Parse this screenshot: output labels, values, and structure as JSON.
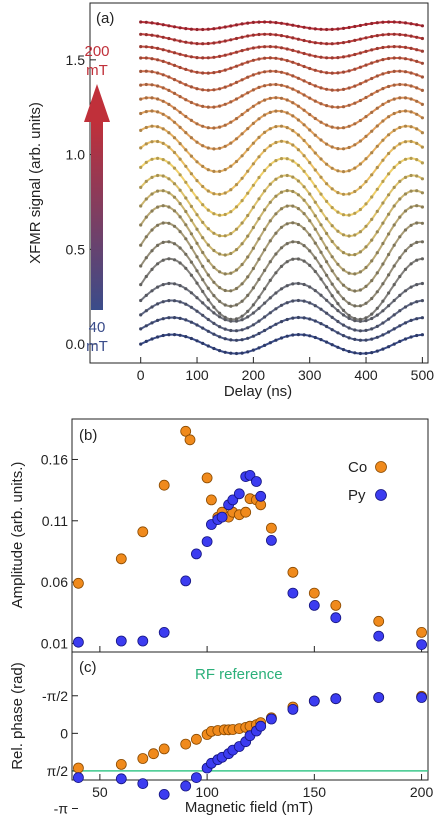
{
  "chart_data": [
    {
      "panel": "(a)",
      "type": "line",
      "xlabel": "Delay (ns)",
      "ylabel": "XFMR signal (arb. units)",
      "xlim": [
        -90,
        510
      ],
      "ylim": [
        -0.1,
        1.8
      ],
      "xticks": [
        0,
        100,
        200,
        300,
        400,
        500
      ],
      "yticks": [
        0.0,
        0.5,
        1.0,
        1.5
      ],
      "field_top": "200",
      "field_top_unit": "mT",
      "field_bottom": "40",
      "field_bottom_unit": "mT",
      "colors": {
        "low": "#3a4c8a",
        "mid": "#f0d06a",
        "high": "#c0303a"
      },
      "series": [
        {
          "offset": 0.0,
          "amp": 0.05,
          "phase": 0.0
        },
        {
          "offset": 0.08,
          "amp": 0.06,
          "phase": 0.0
        },
        {
          "offset": 0.15,
          "amp": 0.08,
          "phase": 0.05
        },
        {
          "offset": 0.22,
          "amp": 0.1,
          "phase": 0.1
        },
        {
          "offset": 0.29,
          "amp": 0.16,
          "phase": 0.15
        },
        {
          "offset": 0.37,
          "amp": 0.17,
          "phase": 0.25
        },
        {
          "offset": 0.46,
          "amp": 0.18,
          "phase": 0.35
        },
        {
          "offset": 0.55,
          "amp": 0.18,
          "phase": 0.45
        },
        {
          "offset": 0.64,
          "amp": 0.17,
          "phase": 0.55
        },
        {
          "offset": 0.73,
          "amp": 0.16,
          "phase": 0.65
        },
        {
          "offset": 0.83,
          "amp": 0.15,
          "phase": 0.75
        },
        {
          "offset": 0.93,
          "amp": 0.14,
          "phase": 0.85
        },
        {
          "offset": 1.03,
          "amp": 0.12,
          "phase": 0.95
        },
        {
          "offset": 1.13,
          "amp": 0.1,
          "phase": 1.05
        },
        {
          "offset": 1.22,
          "amp": 0.08,
          "phase": 1.15
        },
        {
          "offset": 1.31,
          "amp": 0.06,
          "phase": 1.25
        },
        {
          "offset": 1.39,
          "amp": 0.05,
          "phase": 1.35
        },
        {
          "offset": 1.47,
          "amp": 0.04,
          "phase": 1.45
        },
        {
          "offset": 1.54,
          "amp": 0.03,
          "phase": 1.55
        },
        {
          "offset": 1.61,
          "amp": 0.025,
          "phase": 1.65
        },
        {
          "offset": 1.68,
          "amp": 0.02,
          "phase": 1.75
        }
      ],
      "period_ns": 225
    },
    {
      "panel": "(b)",
      "type": "scatter",
      "xlabel": "Magnetic field (mT)",
      "ylabel": "Amplitude (arb. units.)",
      "xlim": [
        37,
        203
      ],
      "ylim": [
        0.003,
        0.193
      ],
      "yticks": [
        "0.01",
        "0.06",
        "0.11",
        "0.16"
      ],
      "series": [
        {
          "name": "Co",
          "color": "#f08a1c",
          "x": [
            40,
            60,
            70,
            80,
            90,
            92,
            100,
            102,
            105,
            107,
            110,
            112,
            115,
            118,
            120,
            123,
            125,
            130,
            140,
            150,
            160,
            180,
            200
          ],
          "y": [
            0.059,
            0.079,
            0.101,
            0.139,
            0.183,
            0.176,
            0.145,
            0.127,
            0.113,
            0.117,
            0.113,
            0.117,
            0.115,
            0.117,
            0.128,
            0.127,
            0.123,
            0.104,
            0.068,
            0.051,
            0.041,
            0.028,
            0.019
          ]
        },
        {
          "name": "Py",
          "color": "#3c3cf0",
          "x": [
            40,
            60,
            70,
            80,
            90,
            95,
            100,
            102,
            105,
            107,
            110,
            112,
            115,
            118,
            120,
            123,
            125,
            130,
            140,
            150,
            160,
            180,
            200
          ],
          "y": [
            0.011,
            0.012,
            0.012,
            0.019,
            0.061,
            0.083,
            0.093,
            0.107,
            0.111,
            0.113,
            0.123,
            0.127,
            0.132,
            0.146,
            0.147,
            0.142,
            0.13,
            0.094,
            0.051,
            0.041,
            0.031,
            0.016,
            0.009
          ]
        }
      ]
    },
    {
      "panel": "(c)",
      "type": "scatter",
      "xlabel": "Magnetic field (mT)",
      "ylabel": "Rel. phase (rad)",
      "xlim": [
        37,
        203
      ],
      "ylim": [
        -3.4,
        1.95
      ],
      "xticks": [
        50,
        100,
        150,
        200
      ],
      "yticks": [
        "-π/2",
        "0",
        "π/2",
        "-π"
      ],
      "reference_label": "RF reference",
      "reference_color": "#3cc88c",
      "series": [
        {
          "name": "Co",
          "color": "#f08a1c",
          "x": [
            40,
            60,
            70,
            75,
            80,
            90,
            95,
            100,
            102,
            105,
            108,
            110,
            112,
            115,
            118,
            120,
            123,
            125,
            130,
            140,
            150,
            160,
            180,
            200
          ],
          "y": [
            -1.45,
            -1.3,
            -1.05,
            -0.85,
            -0.65,
            -0.45,
            -0.25,
            -0.05,
            0.08,
            0.12,
            0.15,
            0.15,
            0.16,
            0.2,
            0.25,
            0.3,
            0.36,
            0.45,
            0.65,
            1.1,
            1.35,
            1.45,
            1.5,
            1.55
          ]
        },
        {
          "name": "Py",
          "color": "#3c3cf0",
          "x": [
            40,
            60,
            70,
            80,
            90,
            95,
            100,
            102,
            105,
            107,
            110,
            112,
            115,
            118,
            120,
            123,
            125,
            130,
            140,
            150,
            160,
            180,
            200
          ],
          "y": [
            -1.85,
            -1.9,
            -2.1,
            -2.55,
            -2.2,
            -1.85,
            -1.45,
            -1.25,
            -1.1,
            -1.0,
            -0.85,
            -0.7,
            -0.55,
            -0.35,
            -0.1,
            0.1,
            0.3,
            0.6,
            1.0,
            1.35,
            1.45,
            1.5,
            1.5
          ]
        }
      ]
    }
  ],
  "labels": {
    "panel_a": "(a)",
    "panel_b": "(b)",
    "panel_c": "(c)",
    "legend_co": "Co",
    "legend_py": "Py"
  }
}
